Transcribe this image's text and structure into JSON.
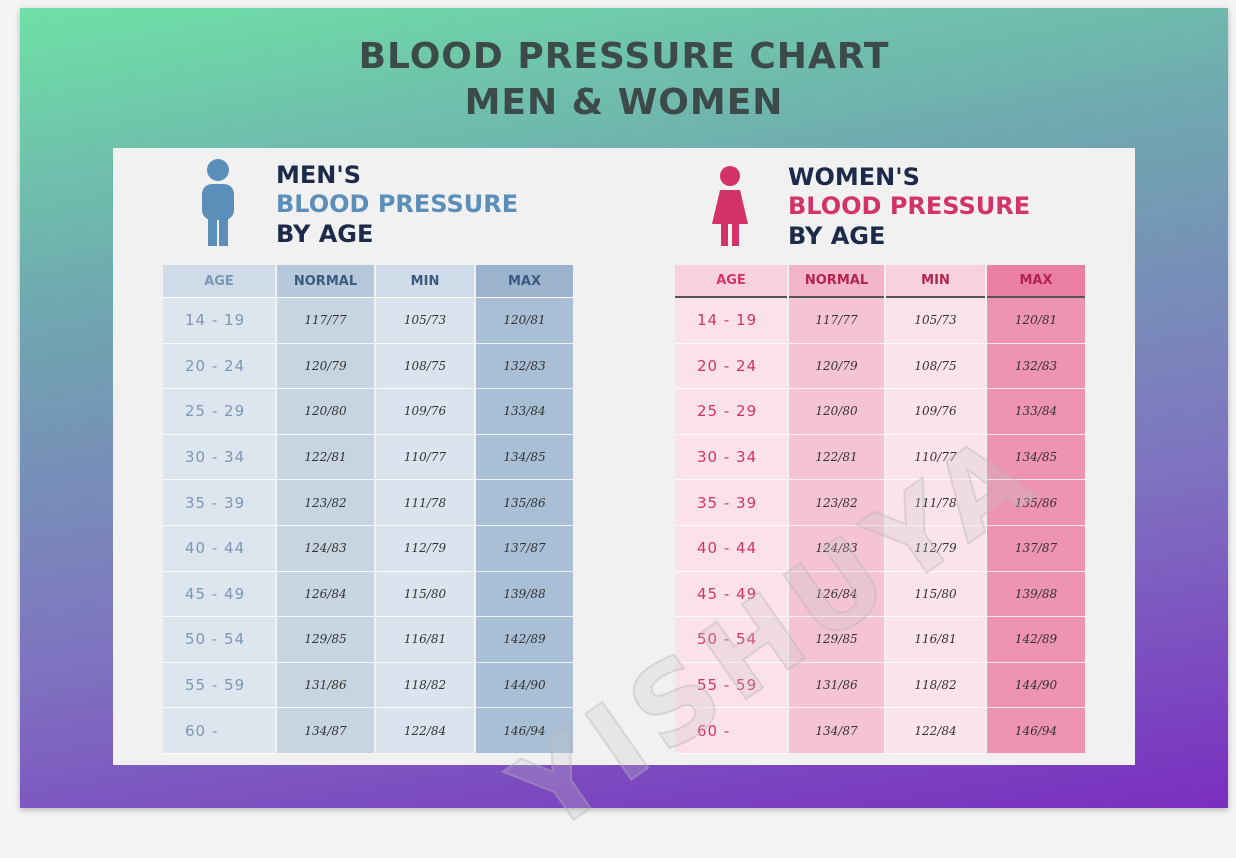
{
  "header": {
    "title_lines": [
      "BLOOD PRESSURE CHART",
      "MEN & WOMEN"
    ]
  },
  "watermark": "YISHUYA",
  "sections": [
    {
      "heading": [
        "MEN'S",
        "BLOOD PRESSURE",
        "BY AGE"
      ],
      "table": {
        "columns": [
          "AGE",
          "NORMAL",
          "MIN",
          "MAX"
        ],
        "rows": [
          [
            "14 - 19",
            "117/77",
            "105/73",
            "120/81"
          ],
          [
            "20 - 24",
            "120/79",
            "108/75",
            "132/83"
          ],
          [
            "25 - 29",
            "120/80",
            "109/76",
            "133/84"
          ],
          [
            "30 - 34",
            "122/81",
            "110/77",
            "134/85"
          ],
          [
            "35 - 39",
            "123/82",
            "111/78",
            "135/86"
          ],
          [
            "40 - 44",
            "124/83",
            "112/79",
            "137/87"
          ],
          [
            "45 - 49",
            "126/84",
            "115/80",
            "139/88"
          ],
          [
            "50 - 54",
            "129/85",
            "116/81",
            "142/89"
          ],
          [
            "55 - 59",
            "131/86",
            "118/82",
            "144/90"
          ],
          [
            "60 -",
            "134/87",
            "122/84",
            "146/94"
          ]
        ]
      }
    },
    {
      "heading": [
        "WOMEN'S",
        "BLOOD PRESSURE",
        "BY AGE"
      ],
      "table": {
        "columns": [
          "AGE",
          "NORMAL",
          "MIN",
          "MAX"
        ],
        "rows": [
          [
            "14 - 19",
            "117/77",
            "105/73",
            "120/81"
          ],
          [
            "20 - 24",
            "120/79",
            "108/75",
            "132/83"
          ],
          [
            "25 - 29",
            "120/80",
            "109/76",
            "133/84"
          ],
          [
            "30 - 34",
            "122/81",
            "110/77",
            "134/85"
          ],
          [
            "35 - 39",
            "123/82",
            "111/78",
            "135/86"
          ],
          [
            "40 - 44",
            "124/83",
            "112/79",
            "137/87"
          ],
          [
            "45 - 49",
            "126/84",
            "115/80",
            "139/88"
          ],
          [
            "50 - 54",
            "129/85",
            "116/81",
            "142/89"
          ],
          [
            "55 - 59",
            "131/86",
            "118/82",
            "144/90"
          ],
          [
            "60 -",
            "134/87",
            "122/84",
            "146/94"
          ]
        ]
      }
    }
  ]
}
